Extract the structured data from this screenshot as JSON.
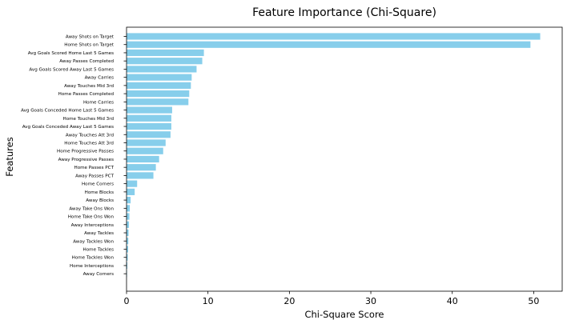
{
  "chart_data": {
    "type": "bar",
    "orientation": "horizontal",
    "title": "Feature Importance (Chi-Square)",
    "xlabel": "Chi-Square Score",
    "ylabel": "Features",
    "xlim": [
      0,
      53.5
    ],
    "xticks": [
      0,
      10,
      20,
      30,
      40,
      50
    ],
    "grid": false,
    "bar_color": "#87ceeb",
    "categories": [
      "Away Shots on Target",
      "Home Shots on Target",
      "Avg Goals Scored Home Last 5 Games",
      "Away Passes Completed",
      "Avg Goals Scored Away Last 5 Games",
      "Away Carries",
      "Away Touches Mid 3rd",
      "Home Passes Completed",
      "Home Carries",
      "Avg Goals Conceded Home Last 5 Games",
      "Home Touches Mid 3rd",
      "Avg Goals Conceded Away Last 5 Games",
      "Away Touches Att 3rd",
      "Home Touches Att 3rd",
      "Home Progressive Passes",
      "Away Progressive Passes",
      "Home Passes PCT",
      "Away Passes PCT",
      "Home Corners",
      "Home Blocks",
      "Away Blocks",
      "Away Take Ons Won",
      "Home Take Ons Won",
      "Away Interceptions",
      "Away Tackles",
      "Away Tackles Won",
      "Home Tackles",
      "Home Tackles Won",
      "Home Interceptions",
      "Away Corners"
    ],
    "values": [
      50.8,
      49.6,
      9.5,
      9.3,
      8.6,
      8.0,
      7.9,
      7.7,
      7.6,
      5.6,
      5.5,
      5.5,
      5.4,
      4.8,
      4.5,
      4.0,
      3.6,
      3.3,
      1.3,
      1.0,
      0.5,
      0.4,
      0.35,
      0.3,
      0.25,
      0.22,
      0.2,
      0.15,
      0.1,
      0.05
    ]
  }
}
